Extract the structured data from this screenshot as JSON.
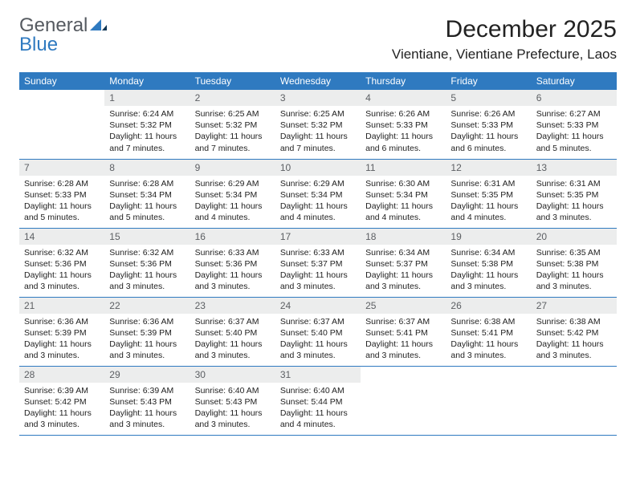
{
  "logo": {
    "word1": "General",
    "word2": "Blue"
  },
  "title": "December 2025",
  "location": "Vientiane, Vientiane Prefecture, Laos",
  "colors": {
    "header_bg": "#2f7ac0",
    "header_text": "#ffffff",
    "daynum_bg": "#eceded",
    "daynum_text": "#5c5f63",
    "body_text": "#222222",
    "logo_grey": "#555a60",
    "logo_blue": "#2f7ac0",
    "cell_border": "#2f7ac0",
    "background": "#ffffff"
  },
  "weekdays": [
    "Sunday",
    "Monday",
    "Tuesday",
    "Wednesday",
    "Thursday",
    "Friday",
    "Saturday"
  ],
  "grid": [
    [
      null,
      {
        "n": "1",
        "sr": "Sunrise: 6:24 AM",
        "ss": "Sunset: 5:32 PM",
        "dl": "Daylight: 11 hours and 7 minutes."
      },
      {
        "n": "2",
        "sr": "Sunrise: 6:25 AM",
        "ss": "Sunset: 5:32 PM",
        "dl": "Daylight: 11 hours and 7 minutes."
      },
      {
        "n": "3",
        "sr": "Sunrise: 6:25 AM",
        "ss": "Sunset: 5:32 PM",
        "dl": "Daylight: 11 hours and 7 minutes."
      },
      {
        "n": "4",
        "sr": "Sunrise: 6:26 AM",
        "ss": "Sunset: 5:33 PM",
        "dl": "Daylight: 11 hours and 6 minutes."
      },
      {
        "n": "5",
        "sr": "Sunrise: 6:26 AM",
        "ss": "Sunset: 5:33 PM",
        "dl": "Daylight: 11 hours and 6 minutes."
      },
      {
        "n": "6",
        "sr": "Sunrise: 6:27 AM",
        "ss": "Sunset: 5:33 PM",
        "dl": "Daylight: 11 hours and 5 minutes."
      }
    ],
    [
      {
        "n": "7",
        "sr": "Sunrise: 6:28 AM",
        "ss": "Sunset: 5:33 PM",
        "dl": "Daylight: 11 hours and 5 minutes."
      },
      {
        "n": "8",
        "sr": "Sunrise: 6:28 AM",
        "ss": "Sunset: 5:34 PM",
        "dl": "Daylight: 11 hours and 5 minutes."
      },
      {
        "n": "9",
        "sr": "Sunrise: 6:29 AM",
        "ss": "Sunset: 5:34 PM",
        "dl": "Daylight: 11 hours and 4 minutes."
      },
      {
        "n": "10",
        "sr": "Sunrise: 6:29 AM",
        "ss": "Sunset: 5:34 PM",
        "dl": "Daylight: 11 hours and 4 minutes."
      },
      {
        "n": "11",
        "sr": "Sunrise: 6:30 AM",
        "ss": "Sunset: 5:34 PM",
        "dl": "Daylight: 11 hours and 4 minutes."
      },
      {
        "n": "12",
        "sr": "Sunrise: 6:31 AM",
        "ss": "Sunset: 5:35 PM",
        "dl": "Daylight: 11 hours and 4 minutes."
      },
      {
        "n": "13",
        "sr": "Sunrise: 6:31 AM",
        "ss": "Sunset: 5:35 PM",
        "dl": "Daylight: 11 hours and 3 minutes."
      }
    ],
    [
      {
        "n": "14",
        "sr": "Sunrise: 6:32 AM",
        "ss": "Sunset: 5:36 PM",
        "dl": "Daylight: 11 hours and 3 minutes."
      },
      {
        "n": "15",
        "sr": "Sunrise: 6:32 AM",
        "ss": "Sunset: 5:36 PM",
        "dl": "Daylight: 11 hours and 3 minutes."
      },
      {
        "n": "16",
        "sr": "Sunrise: 6:33 AM",
        "ss": "Sunset: 5:36 PM",
        "dl": "Daylight: 11 hours and 3 minutes."
      },
      {
        "n": "17",
        "sr": "Sunrise: 6:33 AM",
        "ss": "Sunset: 5:37 PM",
        "dl": "Daylight: 11 hours and 3 minutes."
      },
      {
        "n": "18",
        "sr": "Sunrise: 6:34 AM",
        "ss": "Sunset: 5:37 PM",
        "dl": "Daylight: 11 hours and 3 minutes."
      },
      {
        "n": "19",
        "sr": "Sunrise: 6:34 AM",
        "ss": "Sunset: 5:38 PM",
        "dl": "Daylight: 11 hours and 3 minutes."
      },
      {
        "n": "20",
        "sr": "Sunrise: 6:35 AM",
        "ss": "Sunset: 5:38 PM",
        "dl": "Daylight: 11 hours and 3 minutes."
      }
    ],
    [
      {
        "n": "21",
        "sr": "Sunrise: 6:36 AM",
        "ss": "Sunset: 5:39 PM",
        "dl": "Daylight: 11 hours and 3 minutes."
      },
      {
        "n": "22",
        "sr": "Sunrise: 6:36 AM",
        "ss": "Sunset: 5:39 PM",
        "dl": "Daylight: 11 hours and 3 minutes."
      },
      {
        "n": "23",
        "sr": "Sunrise: 6:37 AM",
        "ss": "Sunset: 5:40 PM",
        "dl": "Daylight: 11 hours and 3 minutes."
      },
      {
        "n": "24",
        "sr": "Sunrise: 6:37 AM",
        "ss": "Sunset: 5:40 PM",
        "dl": "Daylight: 11 hours and 3 minutes."
      },
      {
        "n": "25",
        "sr": "Sunrise: 6:37 AM",
        "ss": "Sunset: 5:41 PM",
        "dl": "Daylight: 11 hours and 3 minutes."
      },
      {
        "n": "26",
        "sr": "Sunrise: 6:38 AM",
        "ss": "Sunset: 5:41 PM",
        "dl": "Daylight: 11 hours and 3 minutes."
      },
      {
        "n": "27",
        "sr": "Sunrise: 6:38 AM",
        "ss": "Sunset: 5:42 PM",
        "dl": "Daylight: 11 hours and 3 minutes."
      }
    ],
    [
      {
        "n": "28",
        "sr": "Sunrise: 6:39 AM",
        "ss": "Sunset: 5:42 PM",
        "dl": "Daylight: 11 hours and 3 minutes."
      },
      {
        "n": "29",
        "sr": "Sunrise: 6:39 AM",
        "ss": "Sunset: 5:43 PM",
        "dl": "Daylight: 11 hours and 3 minutes."
      },
      {
        "n": "30",
        "sr": "Sunrise: 6:40 AM",
        "ss": "Sunset: 5:43 PM",
        "dl": "Daylight: 11 hours and 3 minutes."
      },
      {
        "n": "31",
        "sr": "Sunrise: 6:40 AM",
        "ss": "Sunset: 5:44 PM",
        "dl": "Daylight: 11 hours and 4 minutes."
      },
      null,
      null,
      null
    ]
  ]
}
